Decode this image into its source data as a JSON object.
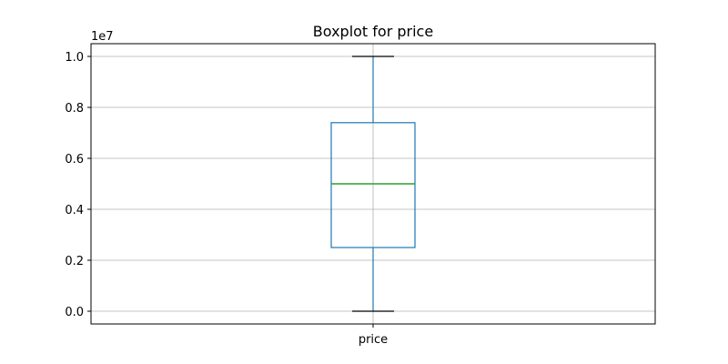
{
  "chart_data": {
    "type": "boxplot",
    "title": "Boxplot for price",
    "categories": [
      "price"
    ],
    "boxes": [
      {
        "name": "price",
        "whisker_low": 0,
        "q1": 2500000,
        "median": 5000000,
        "q3": 7400000,
        "whisker_high": 10000000
      }
    ],
    "y_ticks": [
      0,
      2000000,
      4000000,
      6000000,
      8000000,
      10000000
    ],
    "y_tick_labels": [
      "0.0",
      "0.2",
      "0.4",
      "0.6",
      "0.8",
      "1.0"
    ],
    "y_offset_label": "1e7",
    "ylim": [
      -500000,
      10500000
    ],
    "grid": true,
    "colors": {
      "box": "#1f77b4",
      "median": "#2ca02c",
      "whisker": "#1f77b4",
      "cap": "#000000",
      "grid": "#b0b0b0",
      "frame": "#000000"
    }
  }
}
